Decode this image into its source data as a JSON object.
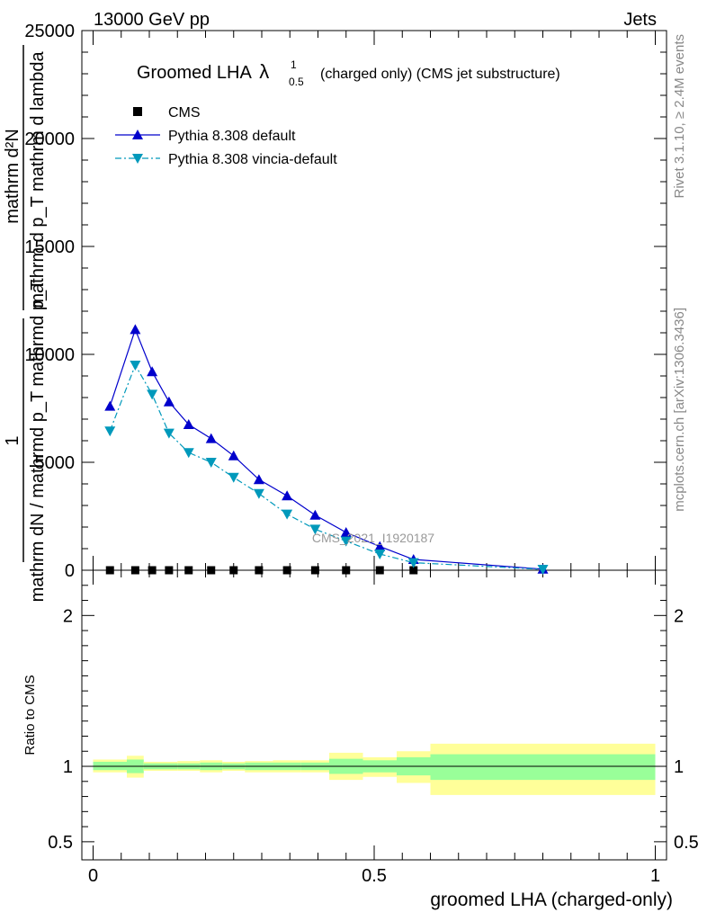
{
  "header": {
    "left": "13000 GeV pp",
    "right": "Jets"
  },
  "side_labels": {
    "rivet": "Rivet 3.1.10, ≥ 2.4M events",
    "mcplots": "mcplots.cern.ch [arXiv:1306.3436]"
  },
  "colors": {
    "data": "#000000",
    "pythia_default": "#0000cc",
    "pythia_vincia": "#0099bb",
    "band_inner": "#99ff99",
    "band_outer": "#ffff99"
  },
  "chart_data": [
    {
      "type": "line",
      "title_main": "Groomed LHA",
      "title_lambda": "λ",
      "title_sup": "1",
      "title_sub": "0.5",
      "title_rest": "(charged only) (CMS jet substructure)",
      "ylabel_num_top": "1",
      "ylabel_frac1_num": "mathrm d²N",
      "ylabel_frac1_den": "mathrm d p_T mathrm d lambda",
      "ylabel_frac2_den": "mathrm dN / mathrmd p_T mathrmd p_T",
      "watermark": "CMS_2021_I1920187",
      "ylim": [
        0,
        25000
      ],
      "yticks": [
        0,
        5000,
        10000,
        15000,
        20000,
        25000
      ],
      "ytick_labels": [
        "0",
        "5000",
        "10000",
        "15000",
        "20000",
        "25000"
      ],
      "legend_position": "top-left",
      "series": [
        {
          "name": "CMS",
          "marker": "square",
          "x": [
            0.03,
            0.075,
            0.105,
            0.135,
            0.17,
            0.21,
            0.25,
            0.295,
            0.345,
            0.395,
            0.45,
            0.51,
            0.57
          ],
          "y": [
            0,
            0,
            0,
            0,
            0,
            0,
            0,
            0,
            0,
            0,
            0,
            0,
            0
          ]
        },
        {
          "name": "Pythia 8.308 default",
          "marker": "triangle-up",
          "x": [
            0.03,
            0.075,
            0.105,
            0.135,
            0.17,
            0.21,
            0.25,
            0.295,
            0.345,
            0.395,
            0.45,
            0.51,
            0.57,
            0.8
          ],
          "y": [
            7600,
            11150,
            9200,
            7800,
            6750,
            6100,
            5300,
            4200,
            3450,
            2550,
            1750,
            1100,
            500,
            50
          ]
        },
        {
          "name": "Pythia 8.308 vincia-default",
          "marker": "triangle-down",
          "x": [
            0.03,
            0.075,
            0.105,
            0.135,
            0.17,
            0.21,
            0.25,
            0.295,
            0.345,
            0.395,
            0.45,
            0.51,
            0.57,
            0.8
          ],
          "y": [
            6450,
            9500,
            8150,
            6350,
            5450,
            5000,
            4300,
            3550,
            2600,
            1900,
            1350,
            750,
            350,
            40
          ]
        }
      ]
    },
    {
      "type": "area",
      "ylabel": "Ratio to CMS",
      "xlabel": "groomed LHA (charged-only)",
      "xlim": [
        -0.02,
        1.02
      ],
      "xticks": [
        0,
        0.5,
        1
      ],
      "xtick_labels": [
        "0",
        "0.5",
        "1"
      ],
      "ylim": [
        0.38,
        2.3
      ],
      "yticks": [
        0.5,
        1,
        2
      ],
      "ytick_labels": [
        "0.5",
        "1",
        "2"
      ],
      "reference_line": 1,
      "bins": [
        {
          "x0": 0.0,
          "x1": 0.06,
          "inner": [
            0.975,
            1.03
          ],
          "outer": [
            0.96,
            1.045
          ]
        },
        {
          "x0": 0.06,
          "x1": 0.09,
          "inner": [
            0.955,
            1.045
          ],
          "outer": [
            0.925,
            1.07
          ]
        },
        {
          "x0": 0.09,
          "x1": 0.12,
          "inner": [
            0.98,
            1.02
          ],
          "outer": [
            0.97,
            1.03
          ]
        },
        {
          "x0": 0.12,
          "x1": 0.15,
          "inner": [
            0.98,
            1.02
          ],
          "outer": [
            0.97,
            1.03
          ]
        },
        {
          "x0": 0.15,
          "x1": 0.19,
          "inner": [
            0.98,
            1.02
          ],
          "outer": [
            0.97,
            1.035
          ]
        },
        {
          "x0": 0.19,
          "x1": 0.23,
          "inner": [
            0.975,
            1.025
          ],
          "outer": [
            0.96,
            1.04
          ]
        },
        {
          "x0": 0.23,
          "x1": 0.27,
          "inner": [
            0.98,
            1.02
          ],
          "outer": [
            0.97,
            1.03
          ]
        },
        {
          "x0": 0.27,
          "x1": 0.32,
          "inner": [
            0.975,
            1.025
          ],
          "outer": [
            0.96,
            1.035
          ]
        },
        {
          "x0": 0.32,
          "x1": 0.37,
          "inner": [
            0.975,
            1.025
          ],
          "outer": [
            0.96,
            1.04
          ]
        },
        {
          "x0": 0.37,
          "x1": 0.42,
          "inner": [
            0.975,
            1.025
          ],
          "outer": [
            0.96,
            1.04
          ]
        },
        {
          "x0": 0.42,
          "x1": 0.48,
          "inner": [
            0.95,
            1.05
          ],
          "outer": [
            0.91,
            1.09
          ]
        },
        {
          "x0": 0.48,
          "x1": 0.54,
          "inner": [
            0.96,
            1.04
          ],
          "outer": [
            0.93,
            1.06
          ]
        },
        {
          "x0": 0.54,
          "x1": 0.6,
          "inner": [
            0.94,
            1.06
          ],
          "outer": [
            0.89,
            1.1
          ]
        },
        {
          "x0": 0.6,
          "x1": 1.0,
          "inner": [
            0.91,
            1.08
          ],
          "outer": [
            0.81,
            1.15
          ]
        }
      ]
    }
  ]
}
